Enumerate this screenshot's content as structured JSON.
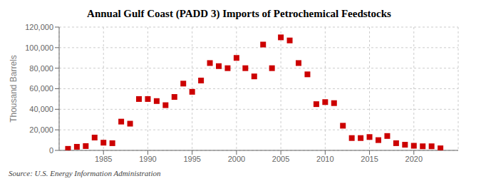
{
  "chart_data": {
    "type": "scatter",
    "title": "Annual Gulf Coast (PADD 3) Imports of Petrochemical Feedstocks",
    "y_label": "Thousand Barrels",
    "annotations": [
      "Source: U.S. Energy Information Administration"
    ],
    "x": [
      1981,
      1982,
      1983,
      1984,
      1985,
      1986,
      1987,
      1988,
      1989,
      1990,
      1991,
      1992,
      1993,
      1994,
      1995,
      1996,
      1997,
      1998,
      1999,
      2000,
      2001,
      2002,
      2003,
      2004,
      2005,
      2006,
      2007,
      2008,
      2009,
      2010,
      2011,
      2012,
      2013,
      2014,
      2015,
      2016,
      2017,
      2018,
      2019,
      2020,
      2021,
      2022,
      2023
    ],
    "values": [
      1500,
      3500,
      4200,
      12500,
      7500,
      7000,
      28000,
      26000,
      50000,
      50000,
      48000,
      44000,
      52000,
      65000,
      57000,
      68000,
      85000,
      82000,
      80000,
      90000,
      80000,
      72000,
      103000,
      80000,
      110000,
      107000,
      85000,
      74000,
      45000,
      47000,
      46000,
      24000,
      12000,
      12000,
      13000,
      10000,
      14000,
      7000,
      5500,
      4500,
      4000,
      4000,
      2000
    ],
    "color": "#cc0000",
    "marker": "square",
    "xlim": [
      1980,
      2025
    ],
    "ylim": [
      0,
      120000
    ],
    "xticks": [
      1985,
      1990,
      1995,
      2000,
      2005,
      2010,
      2015,
      2020
    ],
    "yticks": [
      0,
      {
        "value": 20000,
        "label": "20,000"
      },
      {
        "value": 40000,
        "label": "40,000"
      },
      {
        "value": 60000,
        "label": "60,000"
      },
      {
        "value": 80000,
        "label": "80,000"
      },
      {
        "value": 100000,
        "label": "100,000"
      },
      {
        "value": 120000,
        "label": "120,000"
      }
    ],
    "grid": true
  }
}
